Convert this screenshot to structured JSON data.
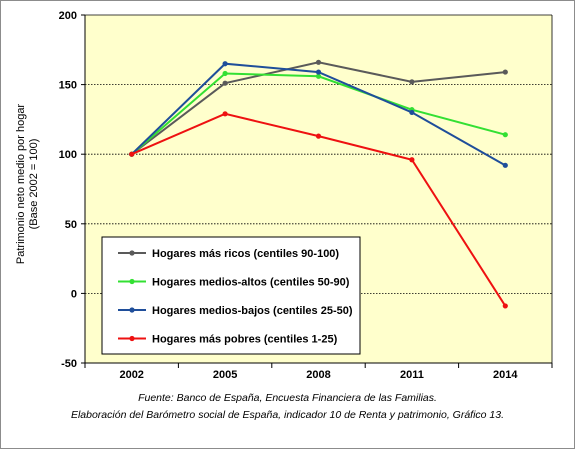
{
  "chart_data": {
    "type": "line",
    "x": [
      "2002",
      "2005",
      "2008",
      "2011",
      "2014"
    ],
    "ylim": [
      -50,
      200
    ],
    "yticks": [
      -50,
      0,
      50,
      100,
      150,
      200
    ],
    "ylabel_lines": [
      "Patrimonio  neto medio por hogar",
      "(Base 2002 = 100)"
    ],
    "grid": "horizontal dotted",
    "legend_position": "bottom-left",
    "plot_background": "#ffffcc",
    "series": [
      {
        "name": "Hogares más ricos (centiles 90-100)",
        "color": "#5a5a5a",
        "values": [
          100,
          151,
          166,
          152,
          159
        ]
      },
      {
        "name": "Hogares medios-altos (centiles 50-90)",
        "color": "#33e033",
        "values": [
          100,
          158,
          156,
          132,
          114
        ]
      },
      {
        "name": "Hogares medios-bajos (centiles 25-50)",
        "color": "#1f4e9a",
        "values": [
          100,
          165,
          159,
          130,
          92
        ]
      },
      {
        "name": "Hogares más pobres (centiles 1-25)",
        "color": "#ee1111",
        "values": [
          100,
          129,
          113,
          96,
          -9
        ]
      }
    ]
  },
  "source": {
    "line1": "Fuente: Banco de España, Encuesta Financiera de las Familias.",
    "line2": "Elaboración del Barómetro social de España, indicador 10 de Renta y patrimonio, Gráfico 13."
  }
}
